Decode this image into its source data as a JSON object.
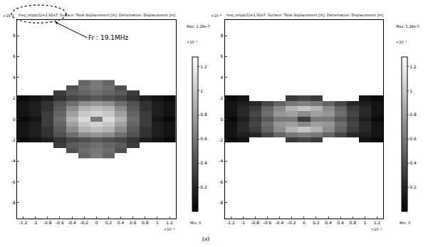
{
  "chart_data": [
    {
      "type": "heatmap",
      "title": "freq_smpp(1)=1.91e7  Surface: Total displacement [m]  Deformation: Displacement [m]",
      "annotations": [
        "Fr : 19.1MHz"
      ],
      "x": [
        -1.2,
        -1.0,
        -0.8,
        -0.6,
        -0.4,
        -0.2,
        0,
        0.2,
        0.4,
        0.6,
        0.8,
        1.0,
        1.2
      ],
      "y": [
        -3.5,
        -3.0,
        -2.5,
        -2.0,
        -1.5,
        -1.0,
        -0.5,
        0,
        0.5,
        1.0,
        1.5,
        2.0,
        2.5,
        3.0,
        3.5
      ],
      "cells": [
        [
          null,
          null,
          null,
          null,
          null,
          0.5,
          0.6,
          0.5,
          null,
          null,
          null,
          null,
          null
        ],
        [
          null,
          null,
          null,
          null,
          0.4,
          0.55,
          0.6,
          0.55,
          0.4,
          null,
          null,
          null,
          null
        ],
        [
          null,
          null,
          null,
          0.3,
          0.45,
          0.5,
          0.55,
          0.5,
          0.45,
          0.3,
          null,
          null,
          null
        ],
        [
          0.05,
          0.1,
          0.15,
          0.25,
          0.35,
          0.4,
          0.45,
          0.4,
          0.35,
          0.25,
          0.15,
          0.1,
          0.05
        ],
        [
          0.1,
          0.15,
          0.25,
          0.4,
          0.55,
          0.7,
          0.75,
          0.7,
          0.55,
          0.4,
          0.25,
          0.15,
          0.1
        ],
        [
          0.1,
          0.15,
          0.25,
          0.45,
          0.7,
          0.9,
          0.95,
          0.9,
          0.7,
          0.45,
          0.25,
          0.15,
          0.1
        ],
        [
          0.1,
          0.15,
          0.3,
          0.5,
          0.8,
          1.0,
          1.05,
          1.0,
          0.8,
          0.5,
          0.3,
          0.15,
          0.1
        ],
        [
          0.05,
          0.1,
          0.3,
          0.55,
          0.9,
          1.1,
          0.6,
          1.1,
          0.9,
          0.55,
          0.3,
          0.1,
          0.05
        ],
        [
          0.1,
          0.15,
          0.3,
          0.5,
          0.8,
          1.0,
          1.05,
          1.0,
          0.8,
          0.5,
          0.3,
          0.15,
          0.1
        ],
        [
          0.1,
          0.15,
          0.25,
          0.45,
          0.7,
          0.9,
          0.95,
          0.9,
          0.7,
          0.45,
          0.25,
          0.15,
          0.1
        ],
        [
          0.1,
          0.15,
          0.25,
          0.4,
          0.55,
          0.7,
          0.75,
          0.7,
          0.55,
          0.4,
          0.25,
          0.15,
          0.1
        ],
        [
          0.05,
          0.1,
          0.15,
          0.25,
          0.35,
          0.4,
          0.45,
          0.4,
          0.35,
          0.25,
          0.15,
          0.1,
          0.05
        ],
        [
          null,
          null,
          null,
          0.3,
          0.45,
          0.5,
          0.55,
          0.5,
          0.45,
          0.3,
          null,
          null,
          null
        ],
        [
          null,
          null,
          null,
          null,
          0.4,
          0.55,
          0.6,
          0.55,
          0.4,
          null,
          null,
          null,
          null
        ],
        [
          null,
          null,
          null,
          null,
          null,
          0.5,
          0.6,
          0.5,
          null,
          null,
          null,
          null,
          null
        ]
      ],
      "xlim": [
        -1.3,
        1.3
      ],
      "xticks": [
        -1.2,
        -1,
        -0.8,
        -0.6,
        -0.4,
        -0.2,
        0,
        0.2,
        0.4,
        0.6,
        0.8,
        1,
        1.2
      ],
      "x_exponent": "×10⁻³",
      "ylim": [
        -9.5,
        9.5
      ],
      "yticks": [
        -8,
        -6,
        -4,
        -2,
        0,
        2,
        4,
        6,
        8
      ],
      "y_exponent": "×10⁻⁴",
      "colorbar_range": [
        0,
        1.28
      ],
      "colorbar_ticks": [
        0.2,
        0.4,
        0.6,
        0.8,
        1,
        1.2
      ],
      "colorbar_exponent": "×10⁻⁷",
      "colorbar_max": "Max: 1.28e-7",
      "colorbar_min": "Min: 0",
      "grid": false
    },
    {
      "type": "heatmap",
      "title": "freq_smpp(1)=1.91e7  Surface: Total displacement [m]  Deformation: Displacement [m]",
      "x": [
        -1.2,
        -1.0,
        -0.8,
        -0.6,
        -0.4,
        -0.2,
        0,
        0.2,
        0.4,
        0.6,
        0.8,
        1.0,
        1.2
      ],
      "y": [
        -3.5,
        -3.0,
        -2.5,
        -2.0,
        -1.5,
        -1.0,
        -0.5,
        0,
        0.5,
        1.0,
        1.5,
        2.0,
        2.5,
        3.0,
        3.5
      ],
      "cells": [
        [
          null,
          null,
          null,
          null,
          null,
          null,
          null,
          null,
          null,
          null,
          null,
          null,
          null
        ],
        [
          null,
          null,
          null,
          null,
          null,
          null,
          null,
          null,
          null,
          null,
          null,
          null,
          null
        ],
        [
          null,
          null,
          null,
          null,
          null,
          null,
          null,
          null,
          null,
          null,
          null,
          null,
          null
        ],
        [
          0.05,
          0.1,
          null,
          null,
          null,
          0.3,
          0.35,
          0.3,
          null,
          null,
          null,
          0.1,
          0.05
        ],
        [
          0.1,
          0.15,
          0.2,
          0.35,
          0.5,
          0.6,
          0.65,
          0.6,
          0.5,
          0.35,
          0.2,
          0.15,
          0.1
        ],
        [
          0.1,
          0.2,
          0.3,
          0.5,
          0.7,
          0.9,
          1.0,
          0.9,
          0.7,
          0.5,
          0.3,
          0.2,
          0.1
        ],
        [
          0.1,
          0.2,
          0.35,
          0.55,
          0.75,
          0.8,
          0.7,
          0.8,
          0.75,
          0.55,
          0.35,
          0.2,
          0.1
        ],
        [
          0.05,
          0.15,
          0.3,
          0.45,
          0.6,
          0.6,
          0.3,
          0.6,
          0.6,
          0.45,
          0.3,
          0.15,
          0.05
        ],
        [
          0.1,
          0.2,
          0.35,
          0.55,
          0.75,
          0.8,
          0.7,
          0.8,
          0.75,
          0.55,
          0.35,
          0.2,
          0.1
        ],
        [
          0.1,
          0.2,
          0.3,
          0.5,
          0.7,
          0.9,
          1.0,
          0.9,
          0.7,
          0.5,
          0.3,
          0.2,
          0.1
        ],
        [
          0.1,
          0.15,
          0.2,
          0.35,
          0.5,
          0.6,
          0.65,
          0.6,
          0.5,
          0.35,
          0.2,
          0.15,
          0.1
        ],
        [
          0.05,
          0.1,
          null,
          null,
          null,
          0.3,
          0.35,
          0.3,
          null,
          null,
          null,
          0.1,
          0.05
        ],
        [
          null,
          null,
          null,
          null,
          null,
          null,
          null,
          null,
          null,
          null,
          null,
          null,
          null
        ],
        [
          null,
          null,
          null,
          null,
          null,
          null,
          null,
          null,
          null,
          null,
          null,
          null,
          null
        ],
        [
          null,
          null,
          null,
          null,
          null,
          null,
          null,
          null,
          null,
          null,
          null,
          null,
          null
        ]
      ],
      "xlim": [
        -1.3,
        1.3
      ],
      "xticks": [
        -1.2,
        -1,
        -0.8,
        -0.6,
        -0.4,
        -0.2,
        0,
        0.2,
        0.4,
        0.6,
        0.8,
        1,
        1.2
      ],
      "x_exponent": "×10⁻³",
      "ylim": [
        -9.5,
        9.5
      ],
      "yticks": [
        -8,
        -6,
        -4,
        -2,
        0,
        2,
        4,
        6,
        8
      ],
      "y_exponent": "×10⁻⁴",
      "colorbar_range": [
        0,
        1.28
      ],
      "colorbar_ticks": [
        0.2,
        0.4,
        0.6,
        0.8,
        1,
        1.2
      ],
      "colorbar_exponent": "×10⁻⁷",
      "colorbar_max": "Max: 1.28e-7",
      "colorbar_min": "Min: 0",
      "grid": false
    }
  ],
  "caption": "(a)"
}
